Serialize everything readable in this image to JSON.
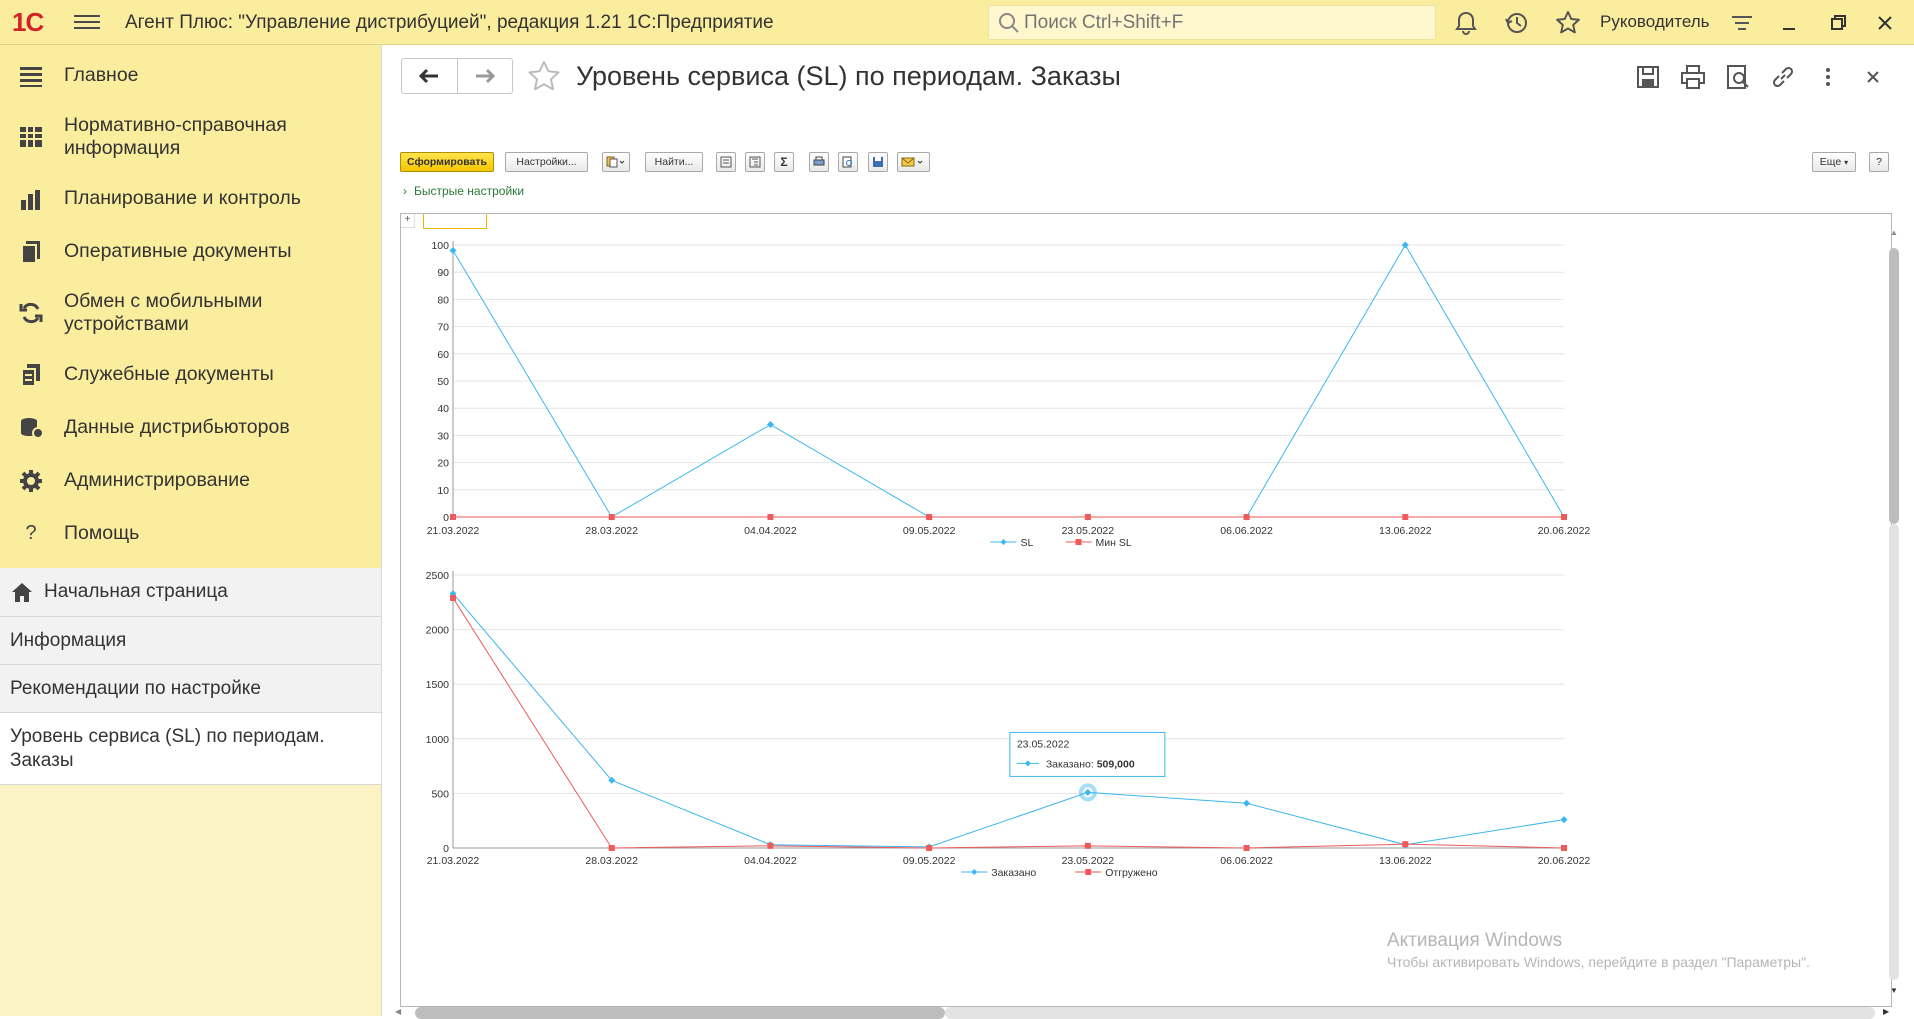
{
  "titlebar": {
    "logo": "1С",
    "app_title": "Агент Плюс: \"Управление дистрибуцией\", редакция 1.21 1С:Предприятие",
    "search_placeholder": "Поиск Ctrl+Shift+F",
    "user": "Руководитель"
  },
  "sidebar": {
    "sections": [
      {
        "label": "Главное",
        "icon": "menu-lines-icon"
      },
      {
        "label": "Нормативно-справочная информация",
        "icon": "grid-icon"
      },
      {
        "label": "Планирование и контроль",
        "icon": "bar-chart-icon"
      },
      {
        "label": "Оперативные документы",
        "icon": "documents-icon"
      },
      {
        "label": "Обмен с мобильными устройствами",
        "icon": "sync-icon"
      },
      {
        "label": "Служебные документы",
        "icon": "service-documents-icon"
      },
      {
        "label": "Данные дистрибьюторов",
        "icon": "database-icon"
      },
      {
        "label": "Администрирование",
        "icon": "gear-icon"
      },
      {
        "label": "Помощь",
        "icon": "question-icon"
      }
    ],
    "open_windows": [
      {
        "label": "Начальная страница",
        "icon": "home-icon"
      },
      {
        "label": "Информация"
      },
      {
        "label": "Рекомендации по настройке"
      },
      {
        "label": "Уровень сервиса (SL) по периодам. Заказы",
        "active": true
      }
    ]
  },
  "form": {
    "title": "Уровень сервиса (SL) по периодам. Заказы",
    "commands": {
      "generate": "Сформировать",
      "settings": "Настройки...",
      "find": "Найти...",
      "more": "Еще",
      "help": "?"
    },
    "quick_settings": "Быстрые настройки",
    "expand": "+"
  },
  "chart_data": [
    {
      "type": "line",
      "x": [
        "21.03.2022",
        "28.03.2022",
        "04.04.2022",
        "09.05.2022",
        "23.05.2022",
        "06.06.2022",
        "13.06.2022",
        "20.06.2022"
      ],
      "yticks": [
        0,
        10,
        20,
        30,
        40,
        50,
        60,
        70,
        80,
        90,
        100
      ],
      "ylim": [
        0,
        100
      ],
      "grid": true,
      "legend": "bottom",
      "series": [
        {
          "name": "SL",
          "color": "#3cb6ee",
          "marker": "diamond",
          "values": [
            98,
            0,
            34,
            0,
            0,
            0,
            100,
            0
          ]
        },
        {
          "name": "Мин SL",
          "color": "#ef5a5a",
          "marker": "square",
          "values": [
            0,
            0,
            0,
            0,
            0,
            0,
            0,
            0
          ]
        }
      ]
    },
    {
      "type": "line",
      "x": [
        "21.03.2022",
        "28.03.2022",
        "04.04.2022",
        "09.05.2022",
        "23.05.2022",
        "06.06.2022",
        "13.06.2022",
        "20.06.2022"
      ],
      "yticks": [
        0,
        500,
        1000,
        1500,
        2000,
        2500
      ],
      "ylim": [
        0,
        2500
      ],
      "grid": true,
      "legend": "bottom",
      "series": [
        {
          "name": "Заказано",
          "color": "#3cb6ee",
          "marker": "diamond",
          "values": [
            2330,
            620,
            30,
            10,
            509,
            410,
            30,
            260
          ]
        },
        {
          "name": "Отгружено",
          "color": "#ef5a5a",
          "marker": "square",
          "values": [
            2290,
            0,
            20,
            0,
            20,
            0,
            35,
            0
          ]
        }
      ],
      "tooltip": {
        "date": "23.05.2022",
        "label": "Заказано:",
        "value": "509,000"
      }
    }
  ],
  "watermark": {
    "line1": "Активация Windows",
    "line2": "Чтобы активировать Windows, перейдите в раздел \"Параметры\"."
  }
}
